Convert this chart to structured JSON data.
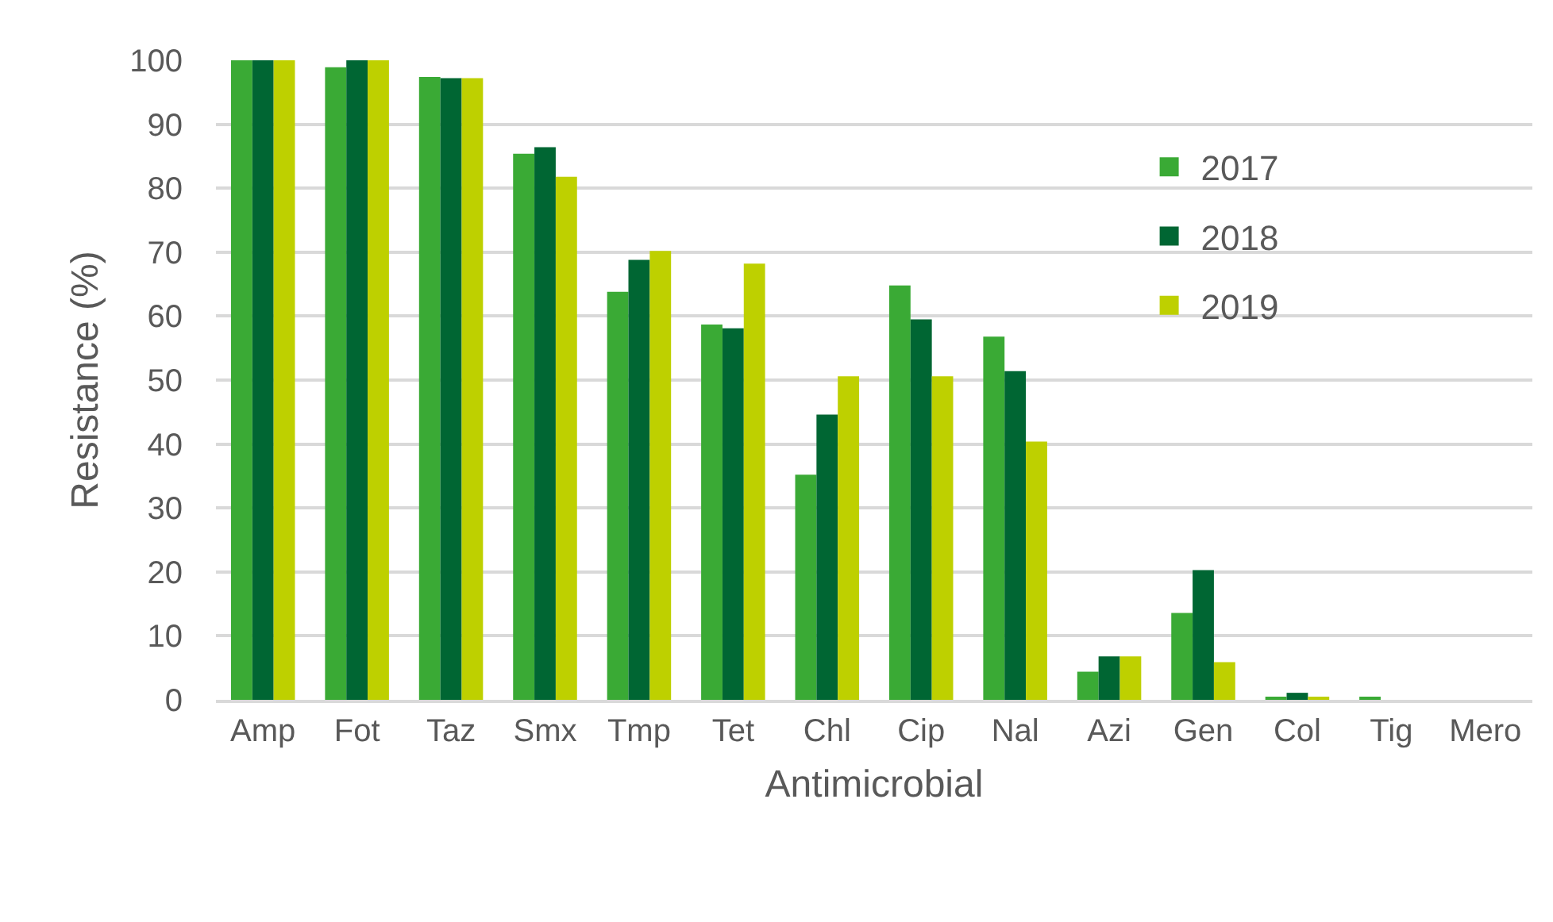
{
  "chart_data": {
    "type": "bar",
    "xlabel": "Antimicrobial",
    "ylabel": "Resistance (%)",
    "categories": [
      "Amp",
      "Fot",
      "Taz",
      "Smx",
      "Tmp",
      "Tet",
      "Chl",
      "Cip",
      "Nal",
      "Azi",
      "Gen",
      "Col",
      "Tig",
      "Mero"
    ],
    "series": [
      {
        "name": "2017",
        "color": "#3aaa35",
        "values": [
          100,
          98.9,
          97.4,
          85.4,
          63.8,
          58.7,
          35.2,
          64.8,
          56.8,
          4.4,
          13.6,
          0.3,
          0.3,
          0
        ]
      },
      {
        "name": "2018",
        "color": "#006633",
        "values": [
          100,
          100,
          97.2,
          86.4,
          68.8,
          58.1,
          44.6,
          59.5,
          51.4,
          6.8,
          20.3,
          1.1,
          0,
          0
        ]
      },
      {
        "name": "2019",
        "color": "#bed000",
        "values": [
          100,
          100,
          97.2,
          81.8,
          70.2,
          68.2,
          50.6,
          50.6,
          40.4,
          6.8,
          5.9,
          0.5,
          0,
          0
        ]
      }
    ],
    "ylim": [
      0,
      100
    ],
    "yticks": [
      0,
      10,
      20,
      30,
      40,
      50,
      60,
      70,
      80,
      90,
      100
    ],
    "grid": "y",
    "legend": "top right"
  }
}
